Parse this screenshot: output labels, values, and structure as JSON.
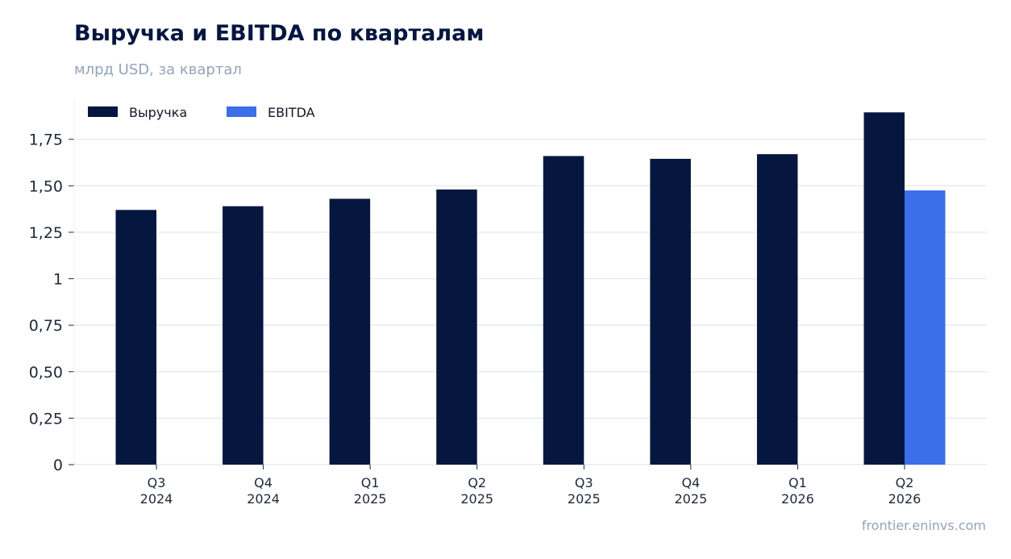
{
  "title": "Выручка и EBITDA по кварталам",
  "subtitle": "млрд USD, за квартал",
  "source": "frontier.eninvs.com",
  "chart_data": {
    "type": "bar",
    "title": "Выручка и EBITDA по кварталам",
    "subtitle": "млрд USD, за квартал",
    "xlabel": "",
    "ylabel": "",
    "categories": [
      [
        "Q3",
        "2024"
      ],
      [
        "Q4",
        "2024"
      ],
      [
        "Q1",
        "2025"
      ],
      [
        "Q2",
        "2025"
      ],
      [
        "Q3",
        "2025"
      ],
      [
        "Q4",
        "2025"
      ],
      [
        "Q1",
        "2026"
      ],
      [
        "Q2",
        "2026"
      ]
    ],
    "series": [
      {
        "name": "Выручка",
        "color": "#05163f",
        "values": [
          1.37,
          1.39,
          1.43,
          1.48,
          1.66,
          1.645,
          1.67,
          1.895
        ]
      },
      {
        "name": "EBITDA",
        "color": "#3b6ee8",
        "values": [
          null,
          null,
          null,
          null,
          null,
          null,
          null,
          1.475
        ]
      }
    ],
    "ylim": [
      0,
      1.97
    ],
    "yticks": [
      0,
      0.25,
      0.5,
      0.75,
      1,
      1.25,
      1.5,
      1.75
    ],
    "ytick_labels": [
      "0",
      "0,25",
      "0,50",
      "0,75",
      "1",
      "1,25",
      "1,50",
      "1,75"
    ],
    "grid": true,
    "legend": "top-left"
  }
}
